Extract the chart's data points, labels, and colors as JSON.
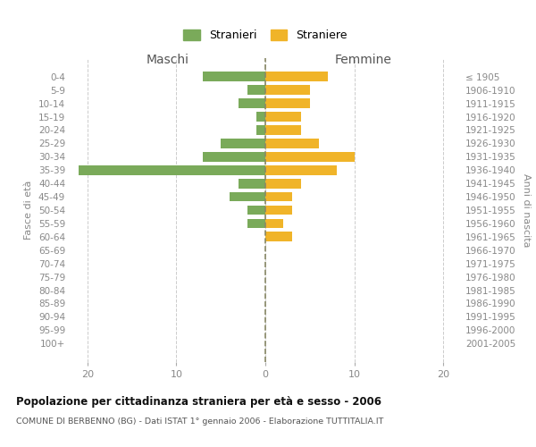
{
  "age_groups": [
    "0-4",
    "5-9",
    "10-14",
    "15-19",
    "20-24",
    "25-29",
    "30-34",
    "35-39",
    "40-44",
    "45-49",
    "50-54",
    "55-59",
    "60-64",
    "65-69",
    "70-74",
    "75-79",
    "80-84",
    "85-89",
    "90-94",
    "95-99",
    "100+"
  ],
  "birth_years": [
    "2001-2005",
    "1996-2000",
    "1991-1995",
    "1986-1990",
    "1981-1985",
    "1976-1980",
    "1971-1975",
    "1966-1970",
    "1961-1965",
    "1956-1960",
    "1951-1955",
    "1946-1950",
    "1941-1945",
    "1936-1940",
    "1931-1935",
    "1926-1930",
    "1921-1925",
    "1916-1920",
    "1911-1915",
    "1906-1910",
    "≤ 1905"
  ],
  "maschi": [
    7,
    2,
    3,
    1,
    1,
    5,
    7,
    21,
    3,
    4,
    2,
    2,
    0,
    0,
    0,
    0,
    0,
    0,
    0,
    0,
    0
  ],
  "femmine": [
    7,
    5,
    5,
    4,
    4,
    6,
    10,
    8,
    4,
    3,
    3,
    2,
    3,
    0,
    0,
    0,
    0,
    0,
    0,
    0,
    0
  ],
  "maschi_color": "#7aaa5a",
  "femmine_color": "#f0b429",
  "title": "Popolazione per cittadinanza straniera per età e sesso - 2006",
  "subtitle": "COMUNE DI BERBENNO (BG) - Dati ISTAT 1° gennaio 2006 - Elaborazione TUTTITALIA.IT",
  "ylabel_left": "Fasce di età",
  "ylabel_right": "Anni di nascita",
  "xlabel_maschi": "Maschi",
  "xlabel_femmine": "Femmine",
  "legend_stranieri": "Stranieri",
  "legend_straniere": "Straniere",
  "xlim": 22,
  "background_color": "#ffffff",
  "grid_color": "#cccccc",
  "zero_line_color": "#888866"
}
